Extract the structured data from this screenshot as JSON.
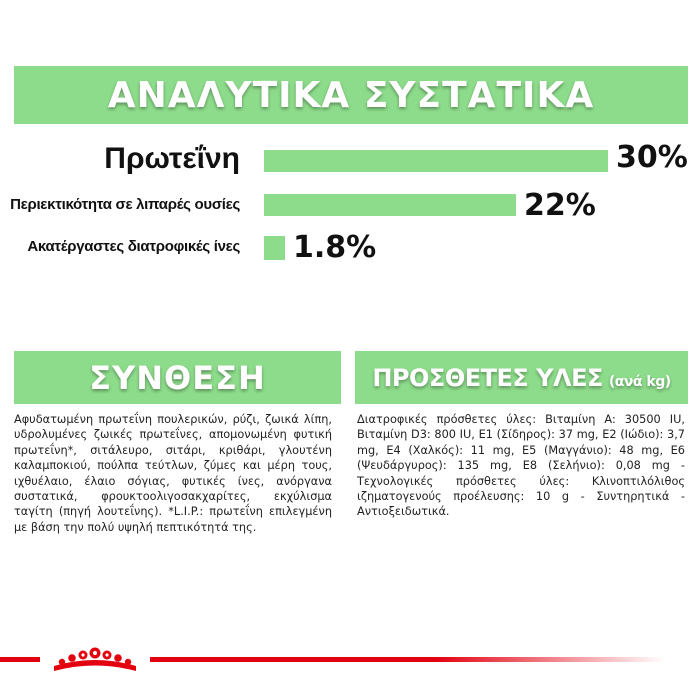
{
  "banner": {
    "title": "ΑΝΑΛΥΤΙΚΑ ΣΥΣΤΑΤΙΚΑ"
  },
  "analytics": [
    {
      "label": "Πρωτεΐνη",
      "value": 30,
      "value_text": "30%"
    },
    {
      "label": "Περιεκτικότητα σε λιπαρές ουσίες",
      "value": 22,
      "value_text": "22%"
    },
    {
      "label": "Ακατέργαστες διατροφικές ίνες",
      "value": 1.8,
      "value_text": "1.8%"
    }
  ],
  "composition": {
    "title": "ΣΥΝΘΕΣΗ",
    "text": "Αφυδατωμένη πρωτεΐνη πουλερικών, ρύζι, ζωικά λίπη, υδρολυμένες ζωικές πρωτεΐνες, απομονωμένη φυτική πρωτεΐνη*, σιτάλευρο, σιτάρι, κριθάρι, γλουτένη καλαμποκιού, πούλπα τεύτλων, ζύμες και μέρη τους, ιχθυέλαιο, έλαιο σόγιας, φυτικές ίνες, ανόργανα συστατικά, φρουκτοολιγοσακχαρίτες, εκχύλισμα ταγίτη (πηγή λουτεΐνης). *L.I.P.: πρωτεΐνη επιλεγμένη με βάση την πολύ υψηλή πεπτικότητά της."
  },
  "additives": {
    "title": "ΠΡΟΣΘΕΤΕΣ ΥΛΕΣ",
    "subtitle": "(ανά kg)",
    "text": "Διατροφικές πρόσθετες ύλες: Βιταμίνη A: 30500 IU, Βιταμίνη D3: 800 IU, E1 (Σίδηρος): 37 mg, E2 (Ιώδιο): 3,7 mg, E4 (Χαλκός): 11 mg, E5 (Μαγγάνιο): 48 mg, E6 (Ψευδάργυρος): 135 mg, E8 (Σελήνιο): 0,08 mg - Τεχνολογικές πρόσθετες ύλες: Κλινοπτιλόλιθος ιζηματογενούς προέλευσης: 10 g - Συντηρητικά - Αντιοξειδωτικά."
  },
  "colors": {
    "accent_green": "#8ddc8b",
    "brand_red": "#e3000f",
    "text": "#222222"
  },
  "footer": {
    "logo_icon": "royal-canin-crown-icon"
  }
}
